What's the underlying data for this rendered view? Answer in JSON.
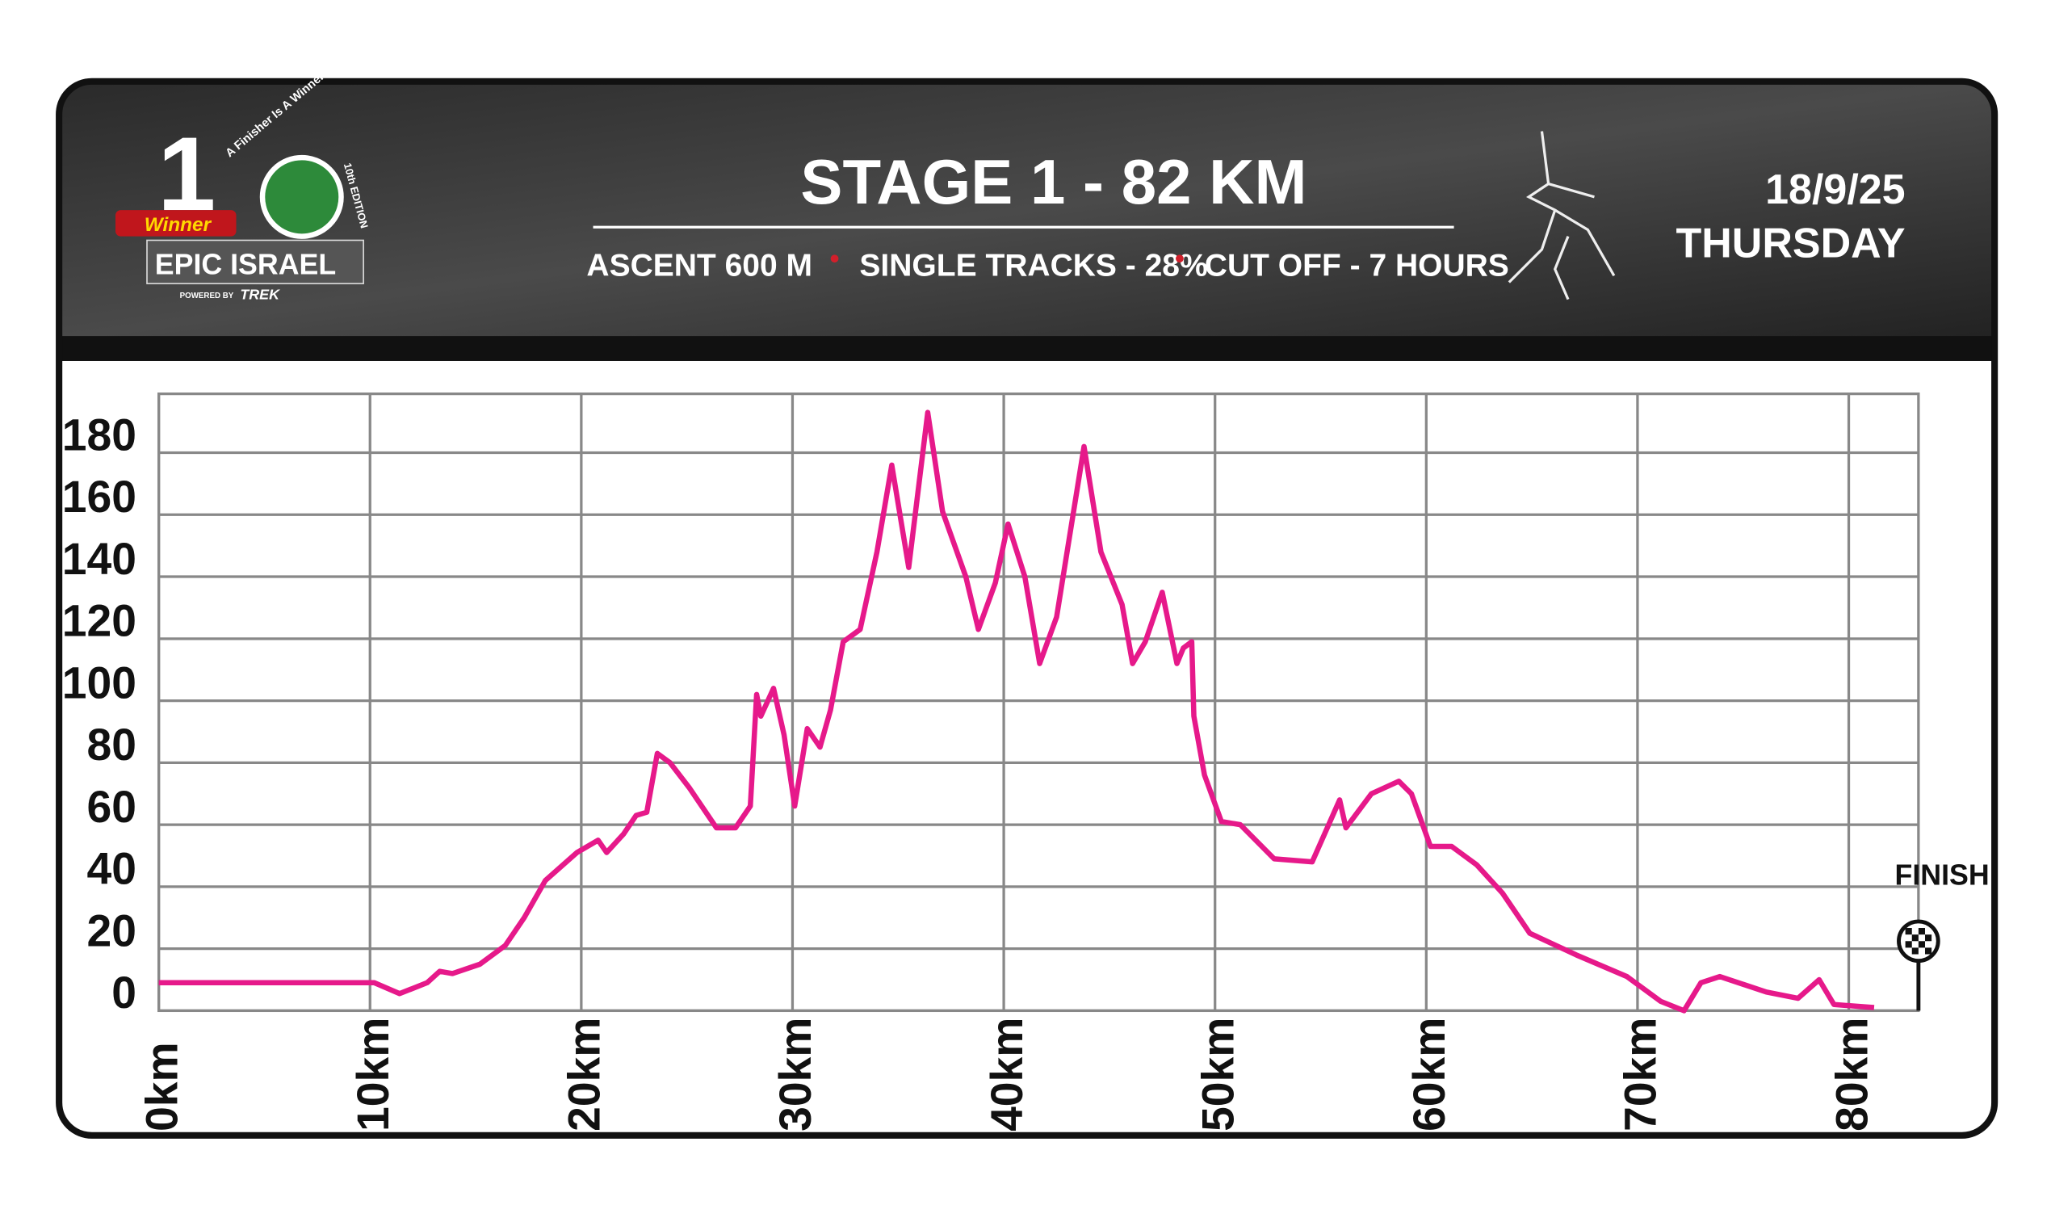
{
  "header": {
    "logo_top": "A Finisher Is A Winner",
    "logo_edition": "10th EDITION",
    "logo_sponsor": "Winner",
    "logo_name": "EPIC ISRAEL",
    "logo_powered": "POWERED BY",
    "logo_brand": "TREK",
    "date": "18/9/25",
    "day": "THURSDAY"
  },
  "chart_data": {
    "type": "line",
    "title": "STAGE 1 -  82 KM",
    "annotations": [
      "ASCENT 600 M",
      "SINGLE TRACKS - 28%",
      "CUT OFF - 7  HOURS"
    ],
    "finish_label": "FINISH",
    "x": [
      0,
      10.2,
      11.4,
      12.7,
      13.3,
      13.9,
      15.2,
      16.4,
      17.3,
      18.3,
      19.8,
      20.8,
      21.2,
      22.0,
      22.6,
      23.1,
      23.6,
      24.2,
      25.1,
      26.4,
      27.3,
      28.0,
      28.3,
      28.5,
      29.1,
      29.6,
      30.1,
      30.7,
      31.3,
      31.8,
      32.4,
      33.2,
      34.0,
      34.7,
      35.5,
      36.4,
      37.1,
      38.2,
      38.8,
      39.6,
      40.2,
      41.0,
      41.7,
      42.5,
      43.8,
      44.6,
      45.6,
      46.1,
      46.7,
      47.5,
      48.2,
      48.5,
      48.9,
      49.0,
      49.5,
      50.3,
      51.2,
      52.8,
      54.6,
      55.9,
      56.2,
      57.4,
      58.7,
      59.3,
      60.2,
      61.2,
      62.4,
      63.6,
      64.9,
      67.1,
      69.5,
      71.1,
      72.2,
      73.0,
      73.9,
      76.1,
      77.6,
      78.6,
      79.3,
      81.2
    ],
    "values": [
      9,
      9,
      5.5,
      9,
      12.7,
      12,
      15,
      21,
      30,
      42,
      51,
      55,
      51,
      57,
      63,
      64,
      83,
      80,
      72,
      59,
      59,
      66,
      102,
      95,
      104,
      89,
      66,
      91,
      85,
      97,
      119,
      123,
      148,
      176,
      143,
      193,
      161,
      140,
      123,
      138,
      157,
      140,
      112,
      127,
      182,
      148,
      131,
      112,
      119,
      135,
      112,
      117,
      119,
      95,
      76,
      61,
      60,
      49,
      48,
      68,
      59,
      70,
      74,
      70,
      53,
      53,
      47,
      38,
      25,
      18,
      11,
      3,
      0,
      9,
      11,
      6,
      4,
      10,
      2,
      1
    ],
    "color": "#e6198a",
    "xlim": [
      0,
      83.3
    ],
    "ylim": [
      0,
      199
    ],
    "xticks": [
      {
        "value": 0,
        "label": "0km"
      },
      {
        "value": 10,
        "label": "10km"
      },
      {
        "value": 20,
        "label": "20km"
      },
      {
        "value": 30,
        "label": "30km"
      },
      {
        "value": 40,
        "label": "40km"
      },
      {
        "value": 50,
        "label": "50km"
      },
      {
        "value": 60,
        "label": "60km"
      },
      {
        "value": 70,
        "label": "70km"
      },
      {
        "value": 80,
        "label": "80km"
      }
    ],
    "yticks": [
      0,
      20,
      40,
      60,
      80,
      100,
      120,
      140,
      160,
      180
    ],
    "grid": true
  }
}
